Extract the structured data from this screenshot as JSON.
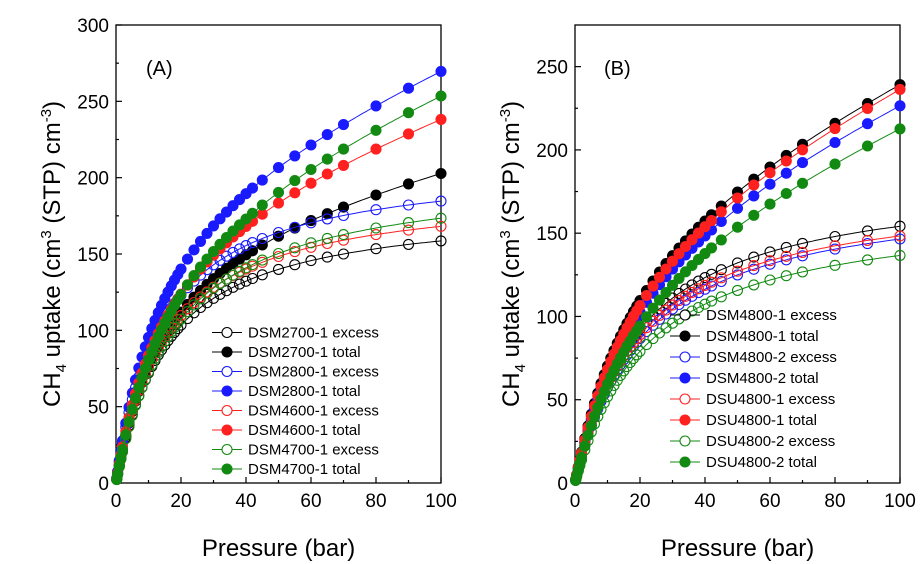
{
  "chart_data": [
    {
      "type": "scatter",
      "panel_label": "(A)",
      "xlabel": "Pressure (bar)",
      "ylabel_parts": {
        "pre": "CH",
        "sub": "4",
        "mid": " uptake (cm",
        "sup1": "3",
        "post": " (STP) cm",
        "sup2": "-3",
        "end": ")"
      },
      "xlim": [
        0,
        100
      ],
      "ylim": [
        0,
        300
      ],
      "xticks": [
        "0",
        "20",
        "40",
        "60",
        "80",
        "100"
      ],
      "yticks": [
        "0",
        "50",
        "100",
        "150",
        "200",
        "250",
        "300"
      ],
      "legend_position": "bottom-right",
      "series": [
        {
          "name": "DSM2700-1 excess",
          "color": "#000000",
          "filled": false,
          "qmax": 183,
          "b": 0.065
        },
        {
          "name": "DSM2700-1 total",
          "color": "#000000",
          "filled": true,
          "qmax": 182,
          "b": 0.065,
          "slope": 0.45
        },
        {
          "name": "DSM2800-1 excess",
          "color": "#1a1aff",
          "filled": false,
          "qmax": 211,
          "b": 0.07
        },
        {
          "name": "DSM2800-1 total",
          "color": "#1a1aff",
          "filled": true,
          "qmax": 211,
          "b": 0.07,
          "slope": 0.85
        },
        {
          "name": "DSM4600-1 excess",
          "color": "#ff2020",
          "filled": false,
          "qmax": 194,
          "b": 0.065
        },
        {
          "name": "DSM4600-1 total",
          "color": "#ff2020",
          "filled": true,
          "qmax": 194,
          "b": 0.065,
          "slope": 0.7
        },
        {
          "name": "DSM4700-1 excess",
          "color": "#128a12",
          "filled": false,
          "qmax": 205,
          "b": 0.055
        },
        {
          "name": "DSM4700-1 total",
          "color": "#128a12",
          "filled": true,
          "qmax": 205,
          "b": 0.055,
          "slope": 0.8
        }
      ]
    },
    {
      "type": "scatter",
      "panel_label": "(B)",
      "xlabel": "Pressure (bar)",
      "ylabel_parts": {
        "pre": "CH",
        "sub": "4",
        "mid": " uptake (cm",
        "sup1": "3",
        "post": " (STP) cm",
        "sup2": "-3",
        "end": ")"
      },
      "xlim": [
        0,
        100
      ],
      "ylim": [
        0,
        275
      ],
      "xticks": [
        "0",
        "20",
        "40",
        "60",
        "80",
        "100"
      ],
      "yticks": [
        "0",
        "50",
        "100",
        "150",
        "200",
        "250"
      ],
      "legend_position": "bottom-right",
      "series": [
        {
          "name": "DSM4800-1 excess",
          "color": "#000000",
          "filled": false,
          "qmax": 185,
          "b": 0.05
        },
        {
          "name": "DSM4800-1 total",
          "color": "#000000",
          "filled": true,
          "qmax": 185,
          "b": 0.05,
          "slope": 0.85
        },
        {
          "name": "DSM4800-2 excess",
          "color": "#1a1aff",
          "filled": false,
          "qmax": 177,
          "b": 0.048
        },
        {
          "name": "DSM4800-2 total",
          "color": "#1a1aff",
          "filled": true,
          "qmax": 177,
          "b": 0.048,
          "slope": 0.8
        },
        {
          "name": "DSU4800-1 excess",
          "color": "#ff2020",
          "filled": false,
          "qmax": 178,
          "b": 0.05
        },
        {
          "name": "DSU4800-1 total",
          "color": "#ff2020",
          "filled": true,
          "qmax": 178,
          "b": 0.05,
          "slope": 0.88
        },
        {
          "name": "DSU4800-2 excess",
          "color": "#128a12",
          "filled": false,
          "qmax": 167,
          "b": 0.045
        },
        {
          "name": "DSU4800-2 total",
          "color": "#128a12",
          "filled": true,
          "qmax": 167,
          "b": 0.045,
          "slope": 0.76
        }
      ]
    }
  ]
}
